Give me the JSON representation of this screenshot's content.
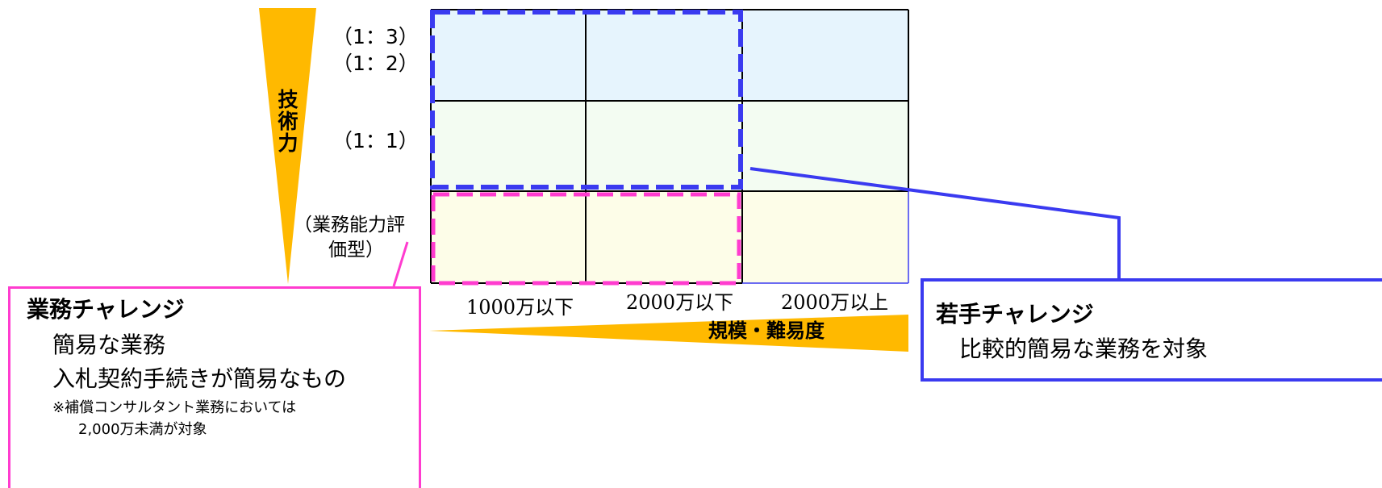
{
  "axes": {
    "vertical_label": "技術力",
    "horizontal_label": "規模・難易度",
    "colors": {
      "wedge": "#ffb900"
    }
  },
  "rows": {
    "r1a": "（1：3）",
    "r1b": "（1：2）",
    "r2": "（1：1）",
    "r3a": "（業務能力評",
    "r3b": "価型）"
  },
  "columns": [
    "1000万以下",
    "2000万以下",
    "2000万以上"
  ],
  "gyomu_box": {
    "title": "業務チャレンジ",
    "line1": "簡易な業務",
    "line2": "入札契約手続きが簡易なもの",
    "note1": "※補償コンサルタント業務においては",
    "note2": "2,000万未満が対象",
    "color": "#ff3ccf"
  },
  "wakate_box": {
    "title": "若手チャレンジ",
    "line1": "比較的簡易な業務を対象",
    "color": "#3a3af0"
  }
}
